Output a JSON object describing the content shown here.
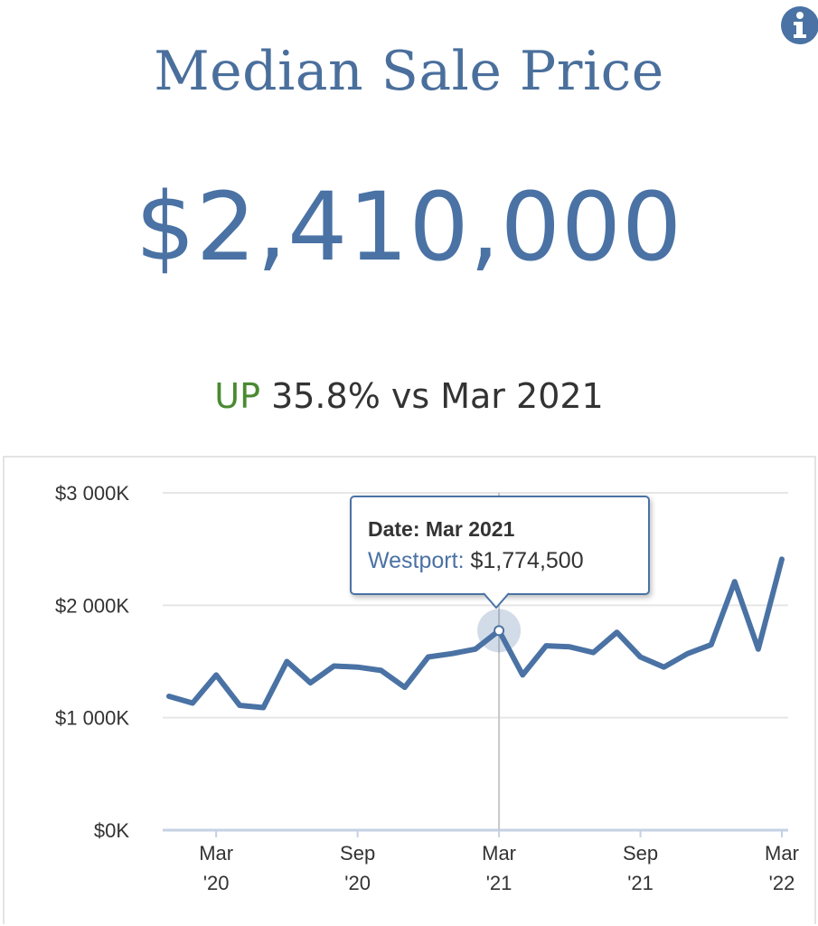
{
  "header": {
    "title": "Median Sale Price",
    "value": "$2,410,000",
    "change_direction": "UP",
    "change_text": "35.8% vs Mar 2021",
    "info_icon": "info-circle-icon"
  },
  "tooltip": {
    "date_label": "Date: Mar 2021",
    "series_label": "Westport:",
    "series_value": "$1,774,500"
  },
  "colors": {
    "accent": "#4a72a4",
    "title": "#4a6f9c",
    "up": "#4a8a32",
    "line": "#4a72a4"
  },
  "chart_data": {
    "type": "line",
    "series": [
      {
        "name": "Westport",
        "values": [
          1190000,
          1130000,
          1380000,
          1110000,
          1090000,
          1500000,
          1310000,
          1460000,
          1450000,
          1420000,
          1270000,
          1540000,
          1570000,
          1610000,
          1774500,
          1380000,
          1640000,
          1630000,
          1580000,
          1760000,
          1540000,
          1450000,
          1570000,
          1650000,
          2210000,
          1610000,
          2410000
        ]
      }
    ],
    "x_tick_labels": [
      {
        "line1": "Mar",
        "line2": "'20",
        "index": 2
      },
      {
        "line1": "Sep",
        "line2": "'20",
        "index": 8
      },
      {
        "line1": "Mar",
        "line2": "'21",
        "index": 14
      },
      {
        "line1": "Sep",
        "line2": "'21",
        "index": 20
      },
      {
        "line1": "Mar",
        "line2": "'22",
        "index": 26
      }
    ],
    "y_ticks": [
      {
        "value": 0,
        "label": "$0K"
      },
      {
        "value": 1000000,
        "label": "$1 000K"
      },
      {
        "value": 2000000,
        "label": "$2 000K"
      },
      {
        "value": 3000000,
        "label": "$3 000K"
      }
    ],
    "ylim": [
      0,
      3000000
    ],
    "highlight_index": 14,
    "grid": true,
    "legend": "none"
  }
}
